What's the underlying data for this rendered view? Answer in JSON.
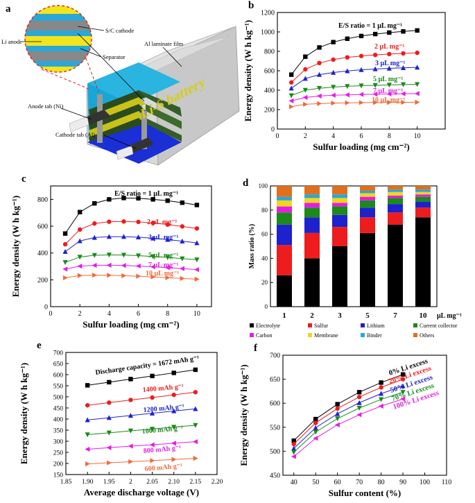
{
  "panel_a": {
    "letter": "a",
    "labels": {
      "li_anode": "Li anode",
      "sc_cathode": "S/C cathode",
      "separator": "Separator",
      "al_film": "Al laminate film",
      "anode_tab": "Anode tab (Ni)",
      "cathode_tab": "Cathode tab (Al)",
      "battery_text": "Li-S battery"
    },
    "colors": {
      "anode": "#f2e51c",
      "cathode": "#888888",
      "separator": "#2aa7d8",
      "housing": "#d9d9d9",
      "blue_base": "#1a2fd6"
    }
  },
  "chart_data": [
    {
      "panel": "b",
      "type": "line",
      "xlabel": "Sulfur loading (mg cm⁻²)",
      "ylabel": "Energy density (W h kg⁻¹)",
      "xlim": [
        0,
        12
      ],
      "ylim": [
        0,
        1200
      ],
      "xticks": [
        0,
        2,
        4,
        6,
        8,
        10
      ],
      "yticks": [
        0,
        200,
        400,
        600,
        800,
        1000,
        1200
      ],
      "x": [
        1,
        2,
        3,
        4,
        5,
        6,
        7,
        8,
        9,
        10
      ],
      "series": [
        {
          "name": "E/S ratio = 1 μL mg⁻¹",
          "color": "#000000",
          "marker": "square",
          "values": [
            560,
            745,
            840,
            895,
            930,
            958,
            978,
            993,
            1005,
            1015
          ]
        },
        {
          "name": "2 μL mg⁻¹",
          "color": "#ee1c1c",
          "marker": "circle",
          "values": [
            480,
            615,
            680,
            715,
            738,
            752,
            763,
            772,
            779,
            785
          ]
        },
        {
          "name": "3 μL mg⁻¹",
          "color": "#1e22cc",
          "marker": "up",
          "values": [
            420,
            520,
            560,
            582,
            598,
            610,
            618,
            625,
            630,
            635
          ]
        },
        {
          "name": "5 μL mg⁻¹",
          "color": "#1b8a1b",
          "marker": "down",
          "values": [
            345,
            400,
            420,
            432,
            440,
            446,
            450,
            454,
            458,
            460
          ]
        },
        {
          "name": "7 μL mg⁻¹",
          "color": "#e31ee3",
          "marker": "left",
          "values": [
            290,
            325,
            340,
            348,
            352,
            356,
            359,
            361,
            363,
            365
          ]
        },
        {
          "name": "10 μL mg⁻¹",
          "color": "#f06a3a",
          "marker": "right",
          "values": [
            230,
            255,
            262,
            267,
            270,
            272,
            273,
            274,
            275,
            276
          ]
        }
      ]
    },
    {
      "panel": "c",
      "type": "line",
      "xlabel": "Sulfur loading (mg cm⁻²)",
      "ylabel": "Energy density (W h kg⁻¹)",
      "xlim": [
        0,
        11
      ],
      "ylim": [
        0,
        900
      ],
      "xticks": [
        0,
        2,
        4,
        6,
        8,
        10
      ],
      "yticks": [
        0,
        200,
        400,
        600,
        800
      ],
      "x": [
        1,
        2,
        3,
        4,
        5,
        6,
        7,
        8,
        9,
        10
      ],
      "series": [
        {
          "name": "E/S ratio = 1 μL mg⁻¹",
          "color": "#000000",
          "marker": "square",
          "values": [
            545,
            705,
            770,
            800,
            810,
            808,
            800,
            790,
            775,
            758
          ]
        },
        {
          "name": "2 μL mg⁻¹",
          "color": "#ee1c1c",
          "marker": "circle",
          "values": [
            465,
            575,
            620,
            633,
            635,
            632,
            624,
            612,
            598,
            583
          ]
        },
        {
          "name": "3 μL mg⁻¹",
          "color": "#1e22cc",
          "marker": "up",
          "values": [
            410,
            490,
            515,
            522,
            522,
            518,
            510,
            500,
            488,
            475
          ]
        },
        {
          "name": "5 μL mg⁻¹",
          "color": "#1b8a1b",
          "marker": "down",
          "values": [
            330,
            370,
            383,
            386,
            385,
            380,
            374,
            367,
            358,
            350
          ]
        },
        {
          "name": "7 μL mg⁻¹",
          "color": "#e31ee3",
          "marker": "left",
          "values": [
            280,
            302,
            308,
            309,
            307,
            303,
            297,
            291,
            284,
            276
          ]
        },
        {
          "name": "10 μL mg⁻¹",
          "color": "#f06a3a",
          "marker": "right",
          "values": [
            215,
            232,
            235,
            234,
            231,
            227,
            222,
            216,
            210,
            205
          ]
        }
      ]
    },
    {
      "panel": "d",
      "type": "bar",
      "stacked": true,
      "ylabel": "Mass ratio (%)",
      "ylim": [
        0,
        100
      ],
      "yticks": [
        0,
        20,
        40,
        60,
        80,
        100
      ],
      "categories": [
        "1",
        "2",
        "3",
        "5",
        "7",
        "10"
      ],
      "category_unit": "μL mg⁻¹",
      "series": [
        {
          "name": "Electrolyte",
          "color": "#000000",
          "values": [
            26,
            40,
            50,
            61,
            68,
            74
          ]
        },
        {
          "name": "Sulfur",
          "color": "#ee1c1c",
          "values": [
            25,
            21,
            16,
            13,
            10,
            8
          ]
        },
        {
          "name": "Lithium",
          "color": "#1e22cc",
          "values": [
            17,
            13,
            10,
            8,
            7,
            5
          ]
        },
        {
          "name": "Current collector",
          "color": "#1b8a1b",
          "values": [
            10,
            8,
            7,
            6,
            5,
            4
          ]
        },
        {
          "name": "Carbon",
          "color": "#e31ee3",
          "values": [
            5,
            4,
            3,
            3,
            2,
            2
          ]
        },
        {
          "name": "Membrane",
          "color": "#f2d51c",
          "values": [
            5,
            4,
            4,
            3,
            3,
            2
          ]
        },
        {
          "name": "Binder",
          "color": "#2aa7d8",
          "values": [
            3,
            3,
            3,
            2,
            2,
            2
          ]
        },
        {
          "name": "Others",
          "color": "#e0701c",
          "values": [
            9,
            7,
            7,
            4,
            3,
            3
          ]
        }
      ]
    },
    {
      "panel": "e",
      "type": "line",
      "xlabel": "Average discharge voltage (V)",
      "ylabel": "Energy density (W h kg⁻¹)",
      "xlim": [
        1.85,
        2.2
      ],
      "ylim": [
        150,
        700
      ],
      "xticks": [
        1.85,
        1.9,
        1.95,
        2.0,
        2.05,
        2.1,
        2.15,
        2.2
      ],
      "yticks": [
        150,
        200,
        250,
        300,
        350,
        400,
        450,
        500,
        550,
        600,
        650,
        700
      ],
      "x": [
        1.9,
        1.95,
        2.0,
        2.05,
        2.1,
        2.15
      ],
      "series": [
        {
          "name": "Discharge capacity = 1672 mAh g⁻¹",
          "color": "#000000",
          "marker": "square",
          "values": [
            552,
            566,
            580,
            594,
            608,
            622
          ]
        },
        {
          "name": "1400 mAh g⁻¹",
          "color": "#ee1c1c",
          "marker": "circle",
          "values": [
            462,
            474,
            486,
            497,
            509,
            521
          ]
        },
        {
          "name": "1200 mAh g⁻¹",
          "color": "#1e22cc",
          "marker": "up",
          "values": [
            396,
            406,
            416,
            426,
            436,
            446
          ]
        },
        {
          "name": "1000 mAh g⁻¹",
          "color": "#1b8a1b",
          "marker": "down",
          "values": [
            330,
            338,
            347,
            355,
            364,
            372
          ]
        },
        {
          "name": "800 mAh g⁻¹",
          "color": "#e31ee3",
          "marker": "left",
          "values": [
            264,
            271,
            278,
            284,
            291,
            298
          ]
        },
        {
          "name": "600 mAh g⁻¹",
          "color": "#f06a3a",
          "marker": "right",
          "values": [
            198,
            203,
            208,
            213,
            218,
            223
          ]
        }
      ]
    },
    {
      "panel": "f",
      "type": "line",
      "xlabel": "Sulfur content (%)",
      "ylabel": "Energy density (W h kg⁻¹)",
      "xlim": [
        35,
        110
      ],
      "ylim": [
        450,
        700
      ],
      "xticks": [
        40,
        50,
        60,
        70,
        80,
        90,
        100,
        110
      ],
      "yticks": [
        450,
        500,
        550,
        600,
        650,
        700
      ],
      "x": [
        40,
        50,
        60,
        70,
        80,
        90
      ],
      "series": [
        {
          "name": "0% Li excess",
          "color": "#000000",
          "marker": "square",
          "values": [
            522,
            567,
            598,
            623,
            643,
            660
          ]
        },
        {
          "name": "20% Li excess",
          "color": "#ee1c1c",
          "marker": "circle",
          "values": [
            515,
            559,
            589,
            613,
            633,
            650
          ]
        },
        {
          "name": "50% Li excess",
          "color": "#1e22cc",
          "marker": "up",
          "values": [
            506,
            549,
            578,
            601,
            620,
            636
          ]
        },
        {
          "name": "70% Li excess",
          "color": "#1b8a1b",
          "marker": "down",
          "values": [
            498,
            540,
            568,
            590,
            608,
            623
          ]
        },
        {
          "name": "100% Li excess",
          "color": "#e31ee3",
          "marker": "left",
          "values": [
            489,
            527,
            555,
            576,
            594,
            609
          ]
        }
      ]
    }
  ]
}
